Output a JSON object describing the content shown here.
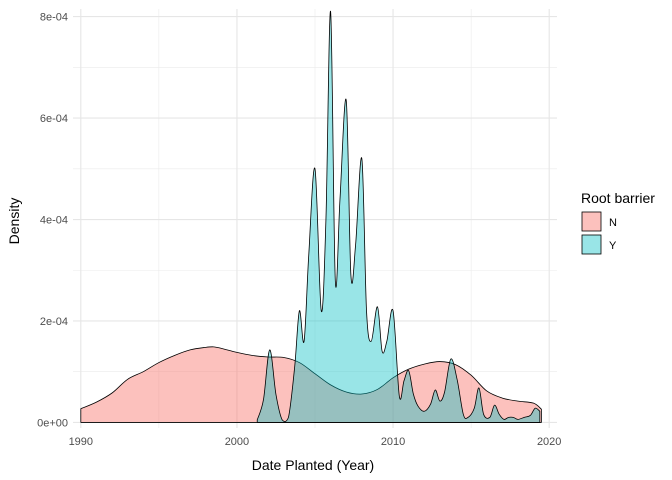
{
  "chart_data": {
    "type": "area",
    "xlabel": "Date Planted (Year)",
    "ylabel": "Density",
    "xlim": [
      1989.5,
      2020.5
    ],
    "ylim": [
      -1.1e-05,
      0.000815
    ],
    "x_ticks": [
      1990,
      2000,
      2010,
      2020
    ],
    "x_tick_labels": [
      "1990",
      "2000",
      "2010",
      "2020"
    ],
    "y_ticks": [
      0,
      0.0002,
      0.0004,
      0.0006,
      0.0008
    ],
    "y_tick_labels": [
      "0e+00",
      "2e-04",
      "4e-04",
      "6e-04",
      "8e-04"
    ],
    "grid": true,
    "legend": {
      "title": "Root barrier",
      "position": "right"
    },
    "series": [
      {
        "name": "N",
        "color": "#F8766D",
        "fill_opacity": 0.45,
        "x": [
          1990,
          1991,
          1992,
          1993,
          1994,
          1995,
          1996,
          1997,
          1998,
          1998.5,
          1999,
          2000,
          2001,
          2002,
          2003,
          2004,
          2005,
          2006,
          2007,
          2008,
          2009,
          2010,
          2011,
          2012,
          2013,
          2014,
          2015,
          2016,
          2017,
          2018,
          2019,
          2019.5
        ],
        "y": [
          2.7e-05,
          4e-05,
          5.8e-05,
          8.5e-05,
          0.0001,
          0.000118,
          0.000132,
          0.000143,
          0.000148,
          0.000149,
          0.000146,
          0.000138,
          0.000132,
          0.000129,
          0.000128,
          0.000118,
          9.6e-05,
          7.4e-05,
          6e-05,
          5.6e-05,
          6.5e-05,
          8.8e-05,
          0.000105,
          0.000115,
          0.00012,
          0.000114,
          9.3e-05,
          6.2e-05,
          4.8e-05,
          4.2e-05,
          3.8e-05,
          2.6e-05
        ]
      },
      {
        "name": "Y",
        "color": "#00BFC4",
        "fill_opacity": 0.4,
        "x": [
          2001.3,
          2001.7,
          2002.1,
          2002.5,
          2002.9,
          2003.3,
          2003.7,
          2004.0,
          2004.3,
          2004.6,
          2005.0,
          2005.4,
          2005.7,
          2006.0,
          2006.3,
          2006.6,
          2007.0,
          2007.3,
          2007.6,
          2008.0,
          2008.3,
          2008.6,
          2009.0,
          2009.3,
          2009.6,
          2010.0,
          2010.4,
          2010.7,
          2011.0,
          2011.3,
          2011.6,
          2012.0,
          2012.4,
          2012.7,
          2013.0,
          2013.3,
          2013.7,
          2014.1,
          2014.5,
          2014.8,
          2015.2,
          2015.5,
          2015.8,
          2016.2,
          2016.5,
          2016.8,
          2017.1,
          2017.4,
          2017.7,
          2018.0,
          2018.4,
          2018.8,
          2019.1,
          2019.4
        ],
        "y": [
          5e-06,
          4.5e-05,
          0.000143,
          5.5e-05,
          5e-06,
          1e-05,
          0.00011,
          0.00022,
          0.00016,
          0.00033,
          0.0005,
          0.00022,
          0.0004,
          0.00081,
          0.00028,
          0.00044,
          0.000635,
          0.00029,
          0.00035,
          0.00052,
          0.00022,
          0.00016,
          0.000228,
          0.00014,
          0.00016,
          0.00022,
          5.2e-05,
          8.2e-05,
          0.000102,
          5.6e-05,
          3.2e-05,
          2.2e-05,
          3.6e-05,
          6.4e-05,
          4.2e-05,
          6e-05,
          0.000125,
          8.5e-05,
          1.6e-05,
          1e-05,
          2.8e-05,
          6.8e-05,
          1.6e-05,
          1e-05,
          3.4e-05,
          1.6e-05,
          6e-06,
          1e-05,
          1e-05,
          6e-06,
          1e-05,
          1.4e-05,
          2.8e-05,
          2.2e-05
        ]
      }
    ]
  }
}
